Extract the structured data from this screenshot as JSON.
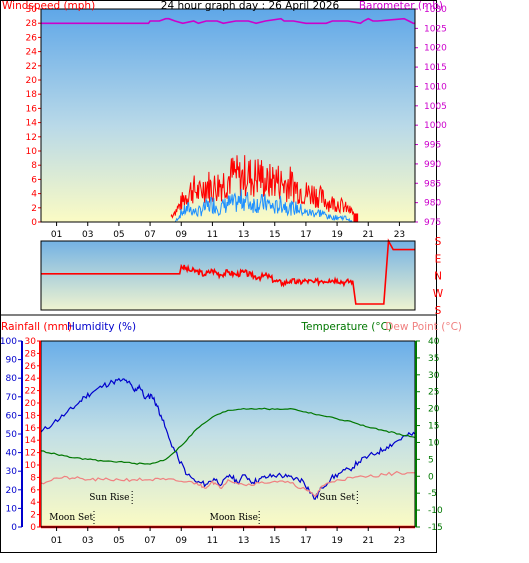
{
  "chart_data": [
    {
      "type": "line",
      "title": "24 hour graph day : 26 April 2026",
      "left_axis_label": "Windspeed (mph)",
      "right_axis_label": "Barometer (mb)",
      "y_left_range": [
        0,
        30
      ],
      "y_left_ticks": [
        0,
        2,
        4,
        6,
        8,
        10,
        12,
        14,
        16,
        18,
        20,
        22,
        24,
        26,
        28,
        30
      ],
      "y_right_range": [
        975,
        1030
      ],
      "y_right_ticks": [
        975,
        980,
        985,
        990,
        995,
        1000,
        1005,
        1010,
        1015,
        1020,
        1025,
        1030
      ],
      "x_range": [
        0,
        24
      ],
      "x_tick_labels": [
        "01",
        "03",
        "05",
        "07",
        "09",
        "11",
        "13",
        "15",
        "17",
        "19",
        "21",
        "23"
      ],
      "colors": {
        "gust": "#ff0000",
        "average": "#1e90ff",
        "barometer": "#cc00cc"
      },
      "barometer_series": {
        "x": [
          0,
          6.9,
          7.0,
          7.6,
          8.0,
          8.2,
          8.6,
          9.1,
          9.8,
          10.1,
          10.6,
          11.3,
          11.7,
          12.5,
          13.3,
          13.8,
          14.4,
          15.4,
          15.6,
          16.2,
          17.0,
          18.3,
          18.7,
          19.7,
          20.5,
          20.7,
          21.0,
          21.3,
          21.6,
          23.3,
          23.6,
          23.9,
          24
        ],
        "y": [
          1026.3,
          1026.3,
          1026.9,
          1026.9,
          1027.5,
          1027.5,
          1026.9,
          1026.3,
          1026.9,
          1026.3,
          1026.9,
          1026.9,
          1026.3,
          1026.9,
          1026.9,
          1026.3,
          1026.9,
          1027.5,
          1026.9,
          1026.9,
          1026.3,
          1026.3,
          1026.9,
          1026.9,
          1026.3,
          1026.9,
          1027.5,
          1026.9,
          1026.9,
          1027.5,
          1026.9,
          1026.3,
          1026.3
        ]
      },
      "gust_envelope": {
        "x": [
          8.3,
          8.8,
          9.2,
          9.7,
          10.2,
          10.6,
          11.0,
          11.5,
          12.0,
          12.4,
          12.8,
          13.2,
          13.6,
          14.0,
          14.5,
          15.0,
          15.5,
          16.0,
          16.5,
          17.0,
          17.5,
          18.0,
          18.5,
          19.0,
          19.5,
          20.0,
          20.3
        ],
        "y": [
          1,
          3,
          5,
          7,
          6,
          8,
          7,
          8,
          9,
          10,
          9,
          10,
          9,
          10,
          8,
          9,
          8,
          8,
          7,
          6,
          6,
          5,
          4,
          4,
          3,
          2,
          0
        ]
      },
      "average_envelope": {
        "x": [
          8.6,
          9.0,
          9.5,
          10.0,
          10.5,
          11.0,
          11.5,
          12.0,
          12.5,
          13.0,
          13.5,
          14.0,
          14.5,
          15.0,
          15.5,
          16.0,
          16.5,
          17.0,
          17.5,
          18.0,
          18.5,
          19.0,
          19.5,
          20.0
        ],
        "y": [
          0,
          2,
          3,
          2,
          3,
          4,
          3,
          4,
          4,
          5,
          4,
          4,
          4,
          3,
          4,
          3,
          3,
          2,
          2,
          2,
          1,
          1,
          1,
          0
        ]
      }
    },
    {
      "type": "line",
      "series_name": "Wind Direction",
      "direction_labels": [
        "S",
        "E",
        "N",
        "W",
        "S"
      ],
      "x_range": [
        0,
        24
      ],
      "y_range": [
        0,
        4
      ],
      "color": "#ff0000",
      "x": [
        0,
        8.9,
        9.0,
        9.5,
        10.0,
        10.5,
        11.0,
        11.5,
        12.0,
        12.5,
        13.0,
        13.5,
        14.0,
        14.5,
        15.0,
        15.5,
        16.0,
        16.5,
        17.0,
        17.5,
        18.0,
        18.5,
        19.0,
        19.5,
        20.0,
        20.2,
        22.0,
        22.3,
        22.6,
        24
      ],
      "y": [
        2.1,
        2.1,
        2.55,
        2.3,
        2.25,
        2.05,
        2.3,
        2.05,
        2.2,
        2.05,
        2.2,
        2.0,
        1.9,
        2.0,
        1.7,
        1.55,
        1.7,
        1.6,
        1.7,
        1.6,
        1.7,
        1.75,
        1.75,
        1.6,
        1.7,
        0.35,
        0.35,
        4.0,
        3.5,
        3.5
      ]
    },
    {
      "type": "line",
      "humidity_label": "Humidity (%)",
      "rainfall_label": "Rainfall (mm)",
      "temperature_label": "Temperature (°C)",
      "dewpoint_label": "Dew Point (°C)",
      "humidity_range": [
        0,
        100
      ],
      "humidity_ticks": [
        0,
        10,
        20,
        30,
        40,
        50,
        60,
        70,
        80,
        90,
        100
      ],
      "rainfall_range": [
        0,
        30
      ],
      "rainfall_ticks": [
        0,
        2,
        4,
        6,
        8,
        10,
        12,
        14,
        16,
        18,
        20,
        22,
        24,
        26,
        28,
        30
      ],
      "temperature_range": [
        -15,
        40
      ],
      "temperature_ticks": [
        -15,
        -10,
        -5,
        0,
        5,
        10,
        15,
        20,
        25,
        30,
        35,
        40
      ],
      "x_range": [
        0,
        24
      ],
      "x_tick_labels": [
        "01",
        "03",
        "05",
        "07",
        "09",
        "11",
        "13",
        "15",
        "17",
        "19",
        "21",
        "23"
      ],
      "events": [
        {
          "label": "Sun Rise",
          "x": 5.85,
          "row": "upper"
        },
        {
          "label": "Sun Set",
          "x": 20.3,
          "row": "upper"
        },
        {
          "label": "Moon Set",
          "x": 3.4,
          "row": "lower"
        },
        {
          "label": "Moon Rise",
          "x": 14.0,
          "row": "lower"
        }
      ],
      "rainfall_total": 0,
      "series": [
        {
          "name": "Humidity",
          "axis": "humidity",
          "color": "#0000cc",
          "x": [
            0,
            0.8,
            1.6,
            2.2,
            2.8,
            3.4,
            4.0,
            4.6,
            5.2,
            5.6,
            6.0,
            6.3,
            6.7,
            7.1,
            7.4,
            7.7,
            8.2,
            8.8,
            9.4,
            10.0,
            10.6,
            11.1,
            11.6,
            12.1,
            12.6,
            13.1,
            13.6,
            14.1,
            14.6,
            15.2,
            15.8,
            16.3,
            16.8,
            17.2,
            17.6,
            18.0,
            18.6,
            19.2,
            19.8,
            20.4,
            21.0,
            21.6,
            22.2,
            22.8,
            23.4,
            24
          ],
          "y": [
            51,
            56,
            61,
            65,
            70,
            73,
            76,
            78,
            79,
            78,
            73,
            76,
            69,
            71,
            66,
            60,
            48,
            37,
            28,
            24,
            23,
            26,
            23,
            28,
            24,
            28,
            24,
            26,
            27,
            28,
            27,
            26,
            25,
            20,
            15,
            21,
            26,
            29,
            31,
            35,
            38,
            40,
            43,
            46,
            49,
            50
          ]
        },
        {
          "name": "Temperature",
          "axis": "temperature",
          "color": "#007700",
          "x": [
            0,
            1,
            2,
            3,
            4,
            5,
            6,
            7,
            8,
            9,
            10,
            11,
            12,
            13,
            14,
            15,
            16,
            17,
            18,
            19,
            20,
            21,
            22,
            23,
            24
          ],
          "y": [
            7.5,
            6.5,
            5.5,
            5.0,
            4.5,
            4.3,
            3.8,
            3.6,
            5.0,
            9.0,
            14.0,
            17.5,
            19.5,
            20.0,
            20.0,
            19.8,
            20.0,
            19.0,
            18.0,
            17.0,
            16.0,
            14.5,
            13.5,
            12.5,
            11.5
          ]
        },
        {
          "name": "Dew Point",
          "axis": "temperature",
          "color": "#f08080",
          "x": [
            0,
            1,
            2,
            3,
            4,
            5,
            6,
            7,
            8,
            9,
            10,
            10.5,
            11,
            11.5,
            12,
            13,
            14,
            15,
            16,
            17,
            17.6,
            18,
            19,
            20,
            21,
            22,
            23,
            24
          ],
          "y": [
            -2,
            -0.5,
            -0.5,
            -1,
            -1,
            -1,
            -1,
            -1,
            -1,
            -1.5,
            -2,
            -3.5,
            -1.5,
            -3.5,
            -1,
            -2.5,
            -2,
            -1.5,
            -2,
            -4,
            -6,
            -3,
            -1,
            -0.5,
            0,
            0.5,
            1,
            1
          ]
        },
        {
          "name": "Rainfall",
          "axis": "rainfall",
          "color": "#ff0000",
          "x": [
            0,
            24
          ],
          "y": [
            0,
            0
          ]
        }
      ]
    }
  ]
}
